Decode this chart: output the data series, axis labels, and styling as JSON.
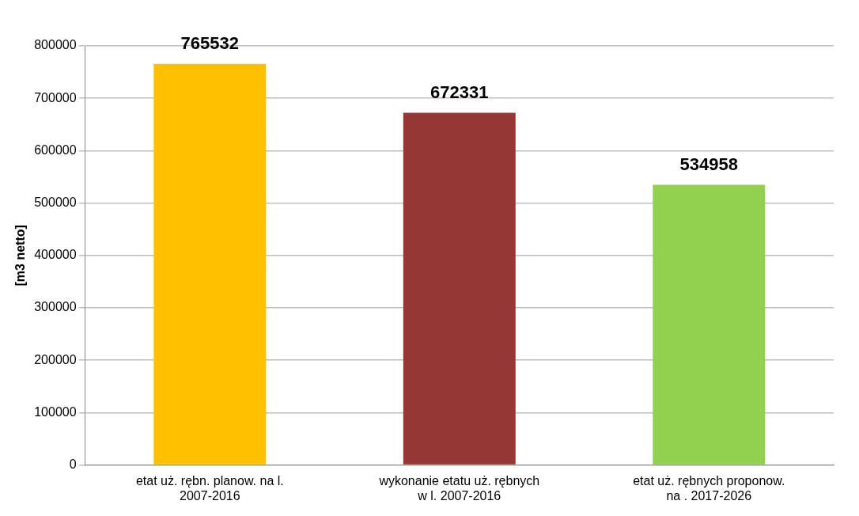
{
  "chart_data": {
    "type": "bar",
    "ylabel": "[m3 netto]",
    "categories": [
      "etat uż. rębn. planow. na l. 2007-2016",
      "wykonanie etatu uż. rębnych w l. 2007-2016",
      "etat uż. rębnych proponow. na . 2017-2026"
    ],
    "values": [
      765532,
      672331,
      534958
    ],
    "colors": [
      "#ffc000",
      "#953735",
      "#92d050"
    ],
    "ylim": [
      0,
      800000
    ],
    "yticks": [
      0,
      100000,
      200000,
      300000,
      400000,
      500000,
      600000,
      700000,
      800000
    ],
    "grid": "y",
    "legend": false,
    "data_labels": true
  }
}
